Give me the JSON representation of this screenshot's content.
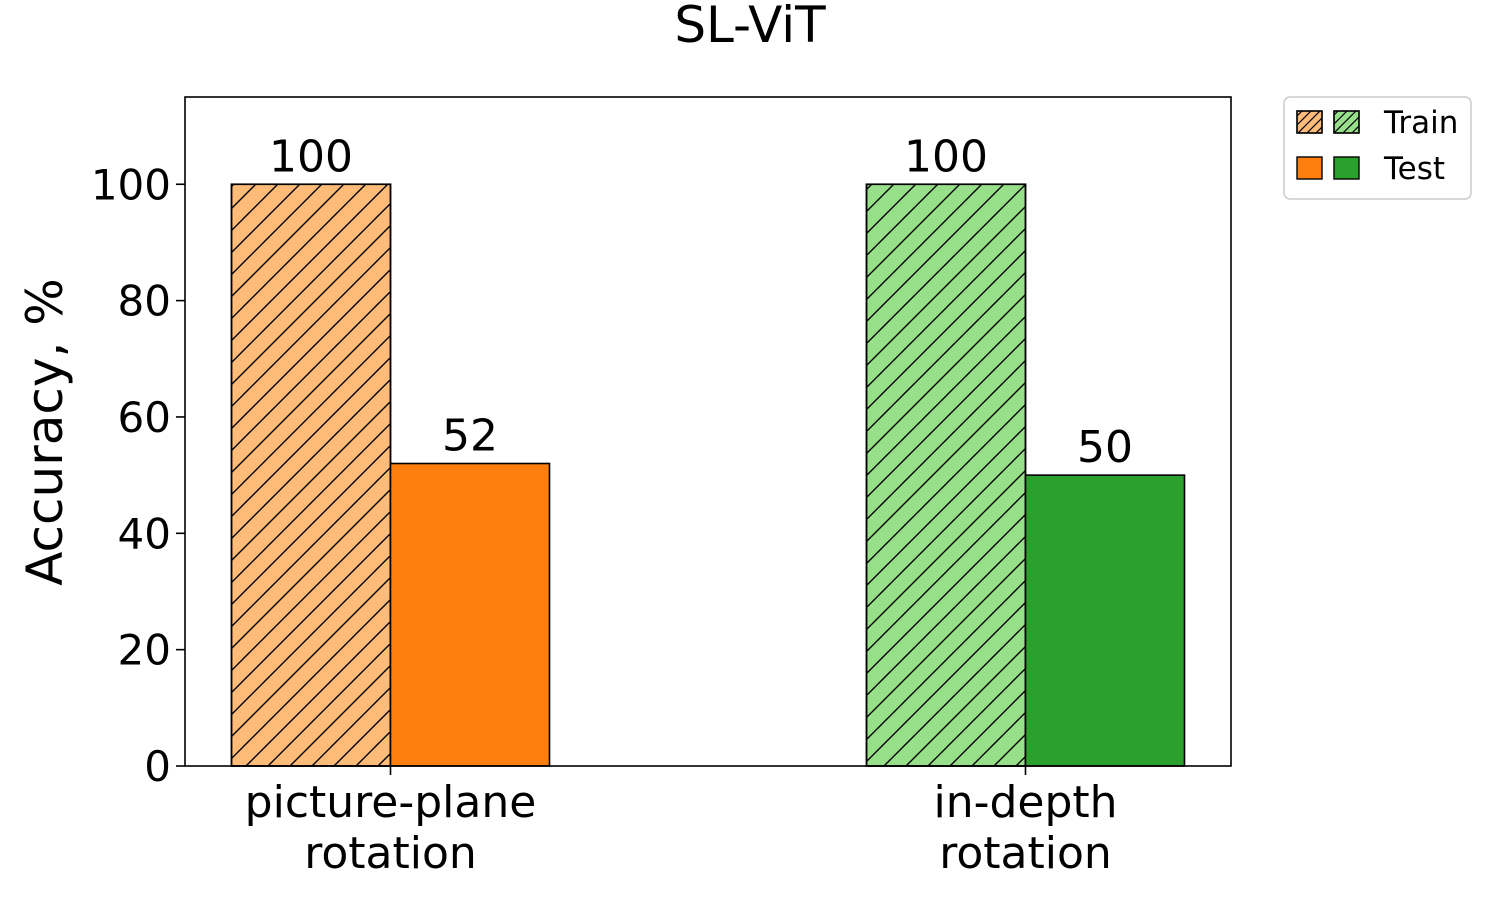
{
  "chart_data": {
    "type": "bar",
    "title": "SL-ViT",
    "xlabel": "",
    "ylabel": "Accuracy, %",
    "ylim": [
      0,
      115
    ],
    "yticks": [
      0,
      20,
      40,
      60,
      80,
      100
    ],
    "grid": false,
    "legend_position": "outside top-right",
    "categories": [
      {
        "lines": [
          "picture-plane",
          "rotation"
        ]
      },
      {
        "lines": [
          "in-depth",
          "rotation"
        ]
      }
    ],
    "groups": [
      {
        "category": "picture-plane rotation",
        "bars": [
          {
            "series": "Train",
            "value": 100,
            "label": "100",
            "color": "#ffbb78",
            "hatch": true
          },
          {
            "series": "Test",
            "value": 52,
            "label": "52",
            "color": "#ff7f0e",
            "hatch": false
          }
        ]
      },
      {
        "category": "in-depth rotation",
        "bars": [
          {
            "series": "Train",
            "value": 100,
            "label": "100",
            "color": "#98df8a",
            "hatch": true
          },
          {
            "series": "Test",
            "value": 50,
            "label": "50",
            "color": "#2ca02c",
            "hatch": false
          }
        ]
      }
    ],
    "legend": [
      {
        "name": "Train",
        "colors": [
          "#ffbb78",
          "#98df8a"
        ],
        "hatch": true
      },
      {
        "name": "Test",
        "colors": [
          "#ff7f0e",
          "#2ca02c"
        ],
        "hatch": false
      }
    ]
  }
}
